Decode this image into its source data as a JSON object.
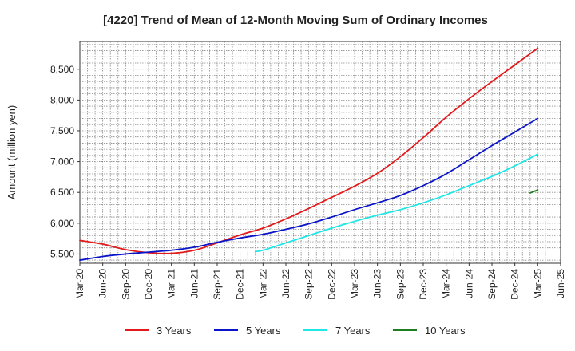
{
  "chart_data": {
    "type": "line",
    "title": "[4220]  Trend of Mean of 12-Month Moving Sum of Ordinary Incomes",
    "xlabel": "",
    "ylabel": "Amount (million yen)",
    "ylim": [
      5350,
      8950
    ],
    "yticks": [
      5500,
      6000,
      6500,
      7000,
      7500,
      8000,
      8500
    ],
    "ytick_labels": [
      "5,500",
      "6,000",
      "6,500",
      "7,000",
      "7,500",
      "8,000",
      "8,500"
    ],
    "x_tick_labels": [
      "Mar-20",
      "Jun-20",
      "Sep-20",
      "Dec-20",
      "Mar-21",
      "Jun-21",
      "Sep-21",
      "Dec-21",
      "Mar-22",
      "Jun-22",
      "Sep-22",
      "Dec-22",
      "Mar-23",
      "Jun-23",
      "Sep-23",
      "Dec-23",
      "Mar-24",
      "Jun-24",
      "Sep-24",
      "Dec-24",
      "Mar-25",
      "Jun-25"
    ],
    "grid": true,
    "legend_position": "bottom",
    "series": [
      {
        "name": "3 Years",
        "color": "#e31a1c",
        "points": [
          [
            0,
            5720
          ],
          [
            1,
            5660
          ],
          [
            2,
            5570
          ],
          [
            3,
            5520
          ],
          [
            4,
            5510
          ],
          [
            5,
            5560
          ],
          [
            6,
            5680
          ],
          [
            7,
            5810
          ],
          [
            8,
            5920
          ],
          [
            9,
            6070
          ],
          [
            10,
            6240
          ],
          [
            11,
            6420
          ],
          [
            12,
            6600
          ],
          [
            13,
            6810
          ],
          [
            14,
            7080
          ],
          [
            15,
            7390
          ],
          [
            16,
            7720
          ],
          [
            17,
            8020
          ],
          [
            18,
            8300
          ],
          [
            19,
            8570
          ],
          [
            20,
            8840
          ]
        ]
      },
      {
        "name": "5 Years",
        "color": "#0a14c8",
        "points": [
          [
            0,
            5400
          ],
          [
            1,
            5460
          ],
          [
            2,
            5500
          ],
          [
            3,
            5530
          ],
          [
            4,
            5560
          ],
          [
            5,
            5610
          ],
          [
            6,
            5690
          ],
          [
            7,
            5760
          ],
          [
            8,
            5820
          ],
          [
            9,
            5900
          ],
          [
            10,
            5990
          ],
          [
            11,
            6100
          ],
          [
            12,
            6220
          ],
          [
            13,
            6330
          ],
          [
            14,
            6450
          ],
          [
            15,
            6610
          ],
          [
            16,
            6800
          ],
          [
            17,
            7030
          ],
          [
            18,
            7260
          ],
          [
            19,
            7480
          ],
          [
            20,
            7700
          ]
        ]
      },
      {
        "name": "7 Years",
        "color": "#21e6e6",
        "points": [
          [
            7.67,
            5540
          ],
          [
            8,
            5560
          ],
          [
            9,
            5680
          ],
          [
            10,
            5800
          ],
          [
            11,
            5920
          ],
          [
            12,
            6030
          ],
          [
            13,
            6130
          ],
          [
            14,
            6220
          ],
          [
            15,
            6330
          ],
          [
            16,
            6460
          ],
          [
            17,
            6610
          ],
          [
            18,
            6760
          ],
          [
            19,
            6930
          ],
          [
            20,
            7120
          ]
        ]
      },
      {
        "name": "10 Years",
        "color": "#1e7d1e",
        "points": [
          [
            19.67,
            6490
          ],
          [
            20,
            6540
          ]
        ]
      }
    ]
  }
}
